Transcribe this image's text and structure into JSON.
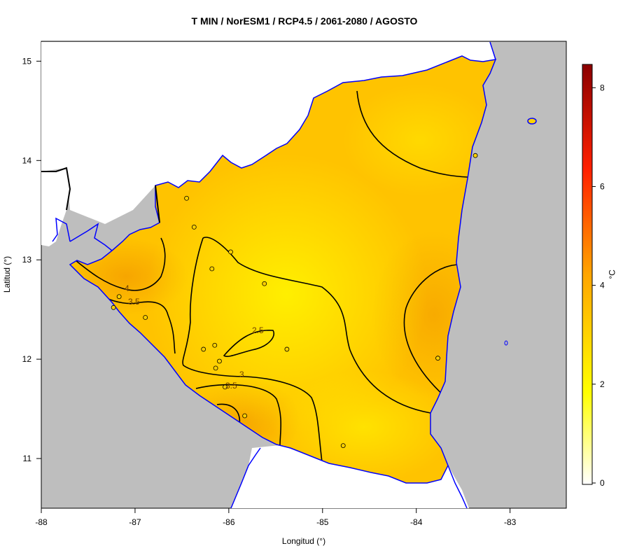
{
  "title": "T MIN / NorESM1 / RCP4.5 / 2061-2080 / AGOSTO",
  "xlabel": "Longitud (°)",
  "ylabel": "Latitud (°)",
  "colorbar": {
    "unit": "°C",
    "ticks": [
      "0",
      "2",
      "4",
      "6",
      "8"
    ]
  },
  "x_ticks": [
    "-88",
    "-87",
    "-86",
    "-85",
    "-84",
    "-83"
  ],
  "y_ticks": [
    "11",
    "12",
    "13",
    "14",
    "15"
  ],
  "contour_labels": [
    "4",
    "3.5",
    "2.5",
    "3",
    "3.5"
  ],
  "colors": {
    "background_sea": "#bebebe",
    "coast": "#0000ff",
    "low": "#ffff00",
    "high": "#f0a000"
  },
  "chart_data": {
    "type": "heatmap",
    "title": "T MIN / NorESM1 / RCP4.5 / 2061-2080 / AGOSTO",
    "xlabel": "Longitud (°)",
    "ylabel": "Latitud (°)",
    "xlim": [
      -88,
      -82.4
    ],
    "ylim": [
      10.5,
      15.2
    ],
    "colorbar_range": [
      0,
      8.5
    ],
    "colorbar_unit": "°C",
    "contour_levels": [
      2.5,
      3,
      3.5,
      4
    ],
    "stations": [
      {
        "lon": -86.45,
        "lat": 13.62
      },
      {
        "lon": -86.37,
        "lat": 13.33
      },
      {
        "lon": -85.98,
        "lat": 13.08
      },
      {
        "lon": -86.18,
        "lat": 12.91
      },
      {
        "lon": -85.62,
        "lat": 12.76
      },
      {
        "lon": -87.17,
        "lat": 12.63
      },
      {
        "lon": -87.23,
        "lat": 12.52
      },
      {
        "lon": -86.89,
        "lat": 12.42
      },
      {
        "lon": -86.27,
        "lat": 12.1
      },
      {
        "lon": -86.15,
        "lat": 12.14
      },
      {
        "lon": -85.38,
        "lat": 12.1
      },
      {
        "lon": -86.1,
        "lat": 11.98
      },
      {
        "lon": -86.14,
        "lat": 11.91
      },
      {
        "lon": -86.04,
        "lat": 11.72
      },
      {
        "lon": -85.83,
        "lat": 11.43
      },
      {
        "lon": -84.78,
        "lat": 11.13
      },
      {
        "lon": -83.77,
        "lat": 12.01
      },
      {
        "lon": -83.37,
        "lat": 14.05
      }
    ]
  }
}
